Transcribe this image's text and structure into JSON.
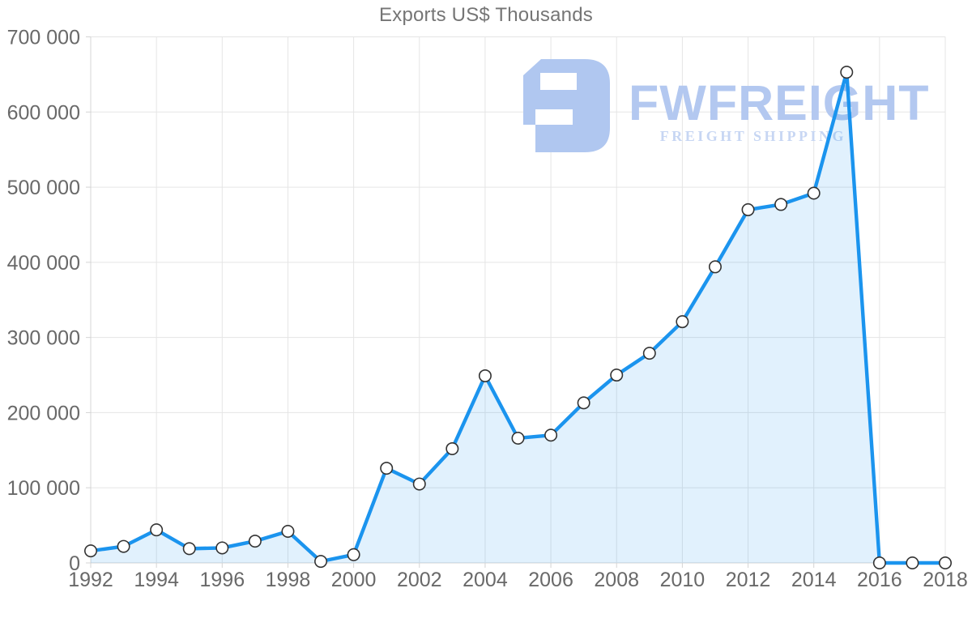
{
  "chart_data": {
    "type": "area",
    "title": "Exports US$ Thousands",
    "series_name": "Exports",
    "unit": "US$ Thousands",
    "x": [
      1992,
      1993,
      1994,
      1995,
      1996,
      1997,
      1998,
      1999,
      2000,
      2001,
      2002,
      2003,
      2004,
      2005,
      2006,
      2007,
      2008,
      2009,
      2010,
      2011,
      2012,
      2013,
      2014,
      2015,
      2016,
      2017,
      2018
    ],
    "values": [
      16000,
      22000,
      44000,
      19000,
      20000,
      29000,
      42000,
      2000,
      11000,
      126000,
      105000,
      152000,
      249000,
      166000,
      170000,
      213000,
      250000,
      279000,
      321000,
      394000,
      470000,
      477000,
      492000,
      653000,
      0,
      0,
      0
    ],
    "xlim": [
      1992,
      2018
    ],
    "ylim": [
      0,
      700000
    ],
    "x_ticks": [
      1992,
      1994,
      1996,
      1998,
      2000,
      2002,
      2004,
      2006,
      2008,
      2010,
      2012,
      2014,
      2016,
      2018
    ],
    "x_tick_labels": [
      "1992",
      "1994",
      "1996",
      "1998",
      "2000",
      "2002",
      "2004",
      "2006",
      "2008",
      "2010",
      "2012",
      "2014",
      "2016",
      "2018"
    ],
    "y_ticks": [
      0,
      100000,
      200000,
      300000,
      400000,
      500000,
      600000,
      700000
    ],
    "y_tick_labels": [
      "0",
      "100 000",
      "200 000",
      "300 000",
      "400 000",
      "500 000",
      "600 000",
      "700 000"
    ],
    "grid": true,
    "legend": "none",
    "marker": "open-circle",
    "colors": {
      "line": "#1b94ee",
      "area_fill": "#1b94ee",
      "area_opacity": 0.13,
      "marker_fill": "#ffffff",
      "marker_stroke": "#333333",
      "grid": "#e5e5e5",
      "axis": "#d4d4d4",
      "tick_text": "#696969",
      "title_text": "#757575"
    }
  },
  "watermark": {
    "brand": "FWFREIGHT",
    "tagline": "FREIGHT SHIPPING",
    "brand_color": "#b3c8f0",
    "tagline_color": "#c7d6f3",
    "icon_color": "#b0c7f0"
  }
}
